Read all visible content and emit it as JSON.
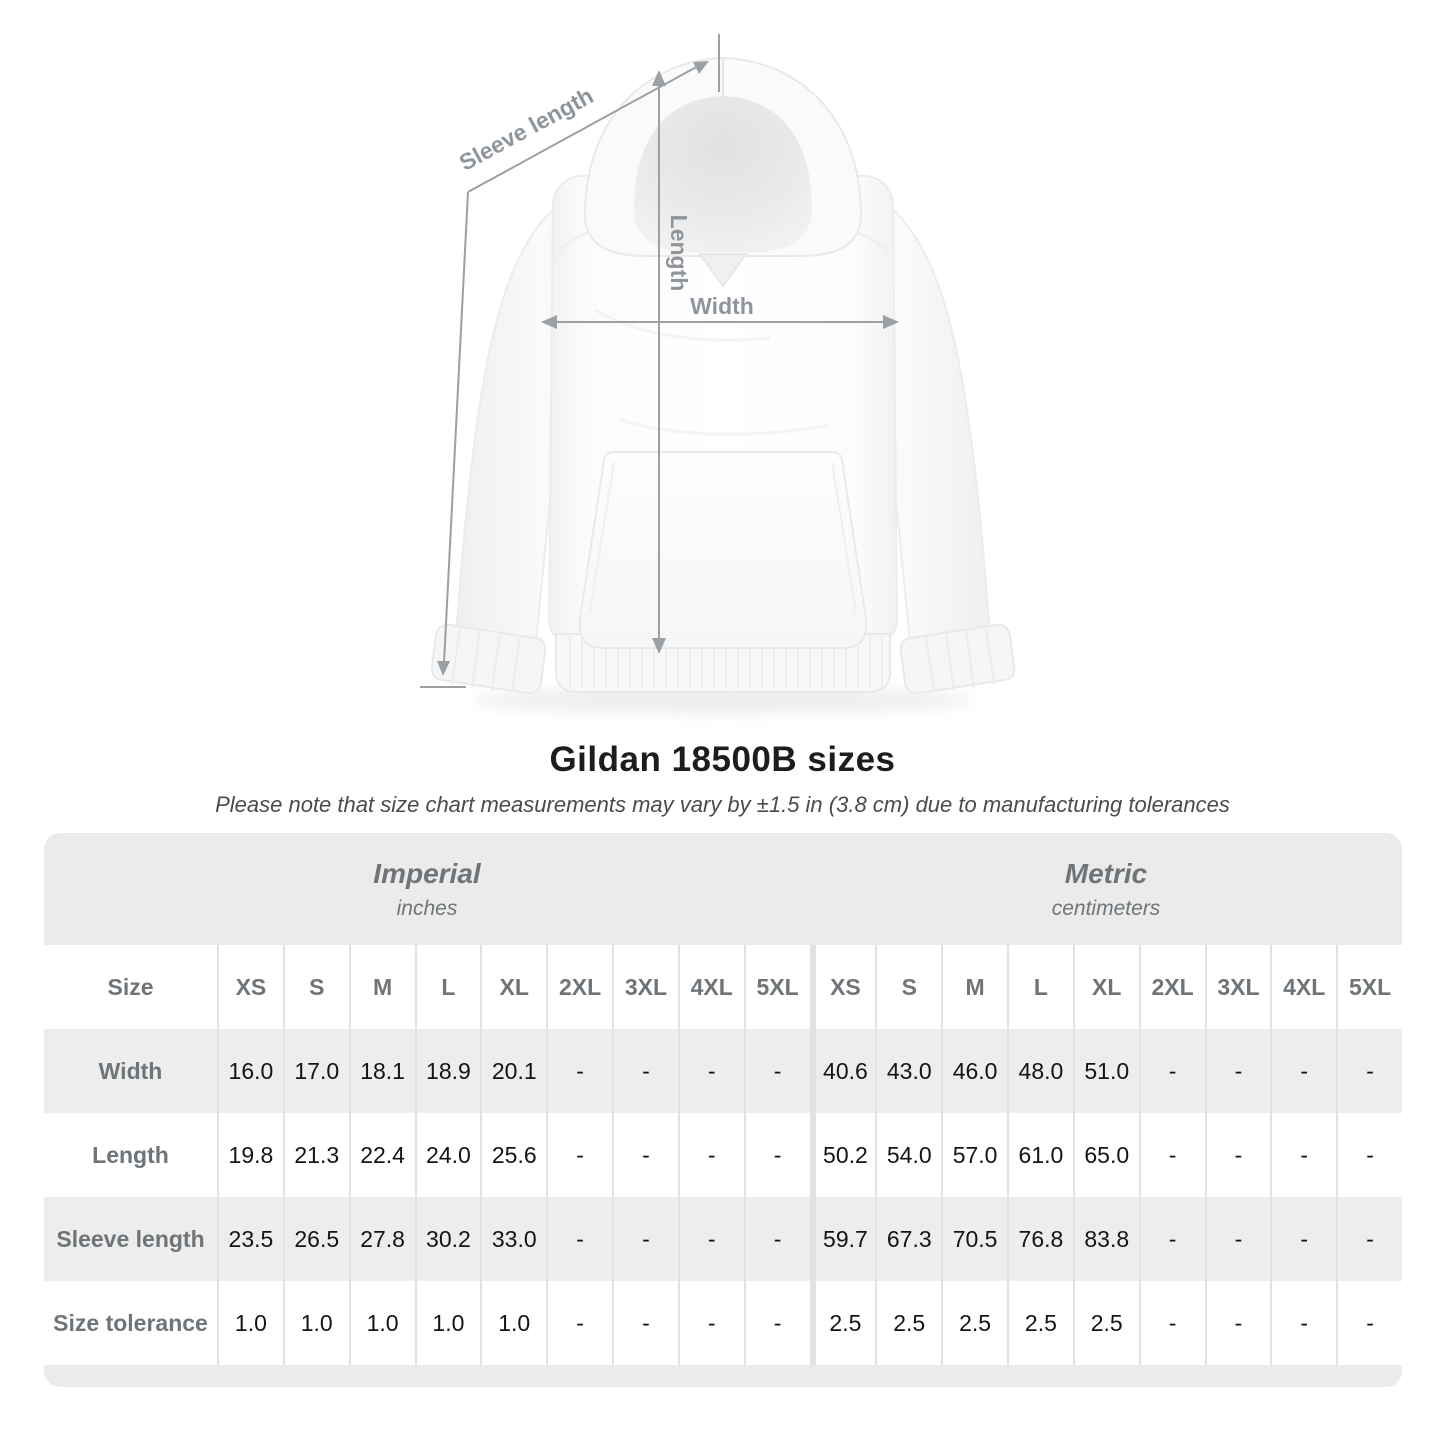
{
  "page": {
    "title": "Gildan 18500B sizes",
    "note": "Please note that size chart measurements may vary by ±1.5 in (3.8 cm) due to manufacturing tolerances"
  },
  "diagram": {
    "labels": {
      "sleeve_length": "Sleeve length",
      "length": "Length",
      "width": "Width"
    }
  },
  "chart_data": {
    "type": "table",
    "title": "Gildan 18500B sizes",
    "corner_label": "Size",
    "unit_groups": [
      {
        "name": "Imperial",
        "unit": "inches",
        "sizes": [
          "XS",
          "S",
          "M",
          "L",
          "XL",
          "2XL",
          "3XL",
          "4XL",
          "5XL"
        ]
      },
      {
        "name": "Metric",
        "unit": "centimeters",
        "sizes": [
          "XS",
          "S",
          "M",
          "L",
          "XL",
          "2XL",
          "3XL",
          "4XL",
          "5XL"
        ]
      }
    ],
    "rows": [
      {
        "label": "Width",
        "imperial": [
          "16.0",
          "17.0",
          "18.1",
          "18.9",
          "20.1",
          "-",
          "-",
          "-",
          "-"
        ],
        "metric": [
          "40.6",
          "43.0",
          "46.0",
          "48.0",
          "51.0",
          "-",
          "-",
          "-",
          "-"
        ]
      },
      {
        "label": "Length",
        "imperial": [
          "19.8",
          "21.3",
          "22.4",
          "24.0",
          "25.6",
          "-",
          "-",
          "-",
          "-"
        ],
        "metric": [
          "50.2",
          "54.0",
          "57.0",
          "61.0",
          "65.0",
          "-",
          "-",
          "-",
          "-"
        ]
      },
      {
        "label": "Sleeve length",
        "imperial": [
          "23.5",
          "26.5",
          "27.8",
          "30.2",
          "33.0",
          "-",
          "-",
          "-",
          "-"
        ],
        "metric": [
          "59.7",
          "67.3",
          "70.5",
          "76.8",
          "83.8",
          "-",
          "-",
          "-",
          "-"
        ]
      },
      {
        "label": "Size tolerance",
        "imperial": [
          "1.0",
          "1.0",
          "1.0",
          "1.0",
          "1.0",
          "-",
          "-",
          "-",
          "-"
        ],
        "metric": [
          "2.5",
          "2.5",
          "2.5",
          "2.5",
          "2.5",
          "-",
          "-",
          "-",
          "-"
        ]
      }
    ]
  },
  "colors": {
    "band": "#ebebeb",
    "row_alt": "#ededed",
    "separator": "#e2e2e2",
    "annotation": "#9aa0a4",
    "header_text": "#6e7478"
  }
}
